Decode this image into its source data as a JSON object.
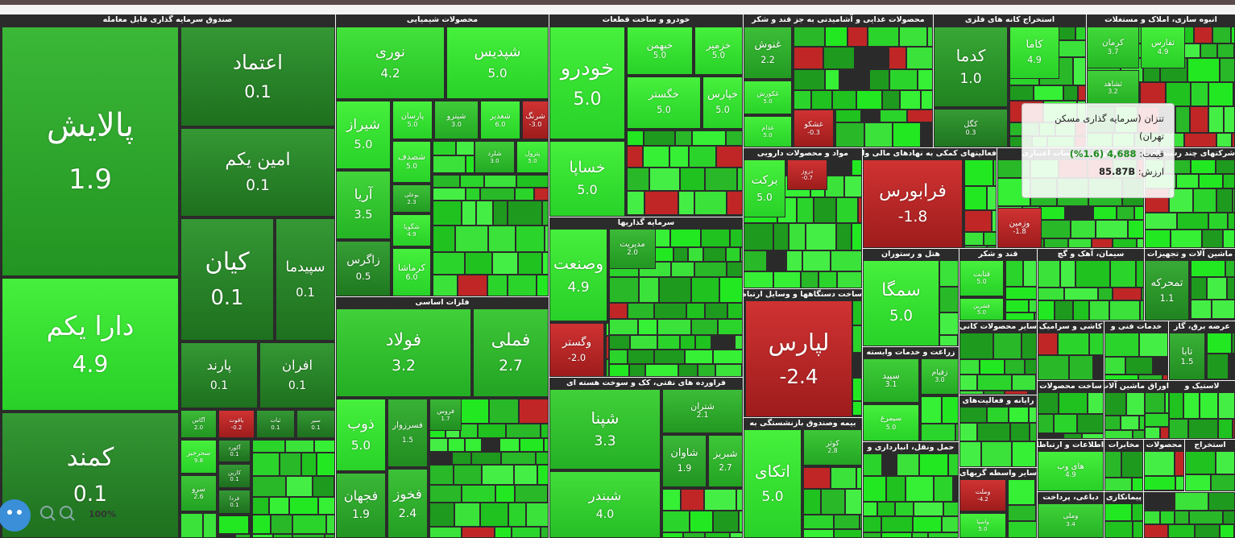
{
  "sectors": [
    {
      "title": "صندوق سرمایه گذاری قابل معامله",
      "tiles": [
        {
          "name": "پالایش",
          "change": "1.9"
        },
        {
          "name": "دارا یکم",
          "change": "4.9"
        },
        {
          "name": "کمند",
          "change": "0.1"
        },
        {
          "name": "اعتماد",
          "change": "0.1"
        },
        {
          "name": "امین یکم",
          "change": "0.1"
        },
        {
          "name": "کیان",
          "change": "0.1"
        },
        {
          "name": "سپیدما",
          "change": "0.1"
        },
        {
          "name": "پارند",
          "change": "0.1"
        },
        {
          "name": "افران",
          "change": "0.1"
        },
        {
          "name": "آگاس",
          "change": "2.0"
        },
        {
          "name": "یاقوت",
          "change": "0.2-"
        },
        {
          "name": "ثبات",
          "change": "0.1"
        },
        {
          "name": "سیر",
          "change": "0.1"
        },
        {
          "name": "سحرخیز",
          "change": "9.8"
        },
        {
          "name": "آکورد",
          "change": "0.1"
        },
        {
          "name": "سرو",
          "change": "2.6"
        },
        {
          "name": "کارین",
          "change": "0.1"
        },
        {
          "name": "فردا",
          "change": "0.1"
        }
      ]
    },
    {
      "title": "محصولات شیمیایی",
      "tiles": [
        {
          "name": "نوری",
          "change": "4.2"
        },
        {
          "name": "شپدیس",
          "change": "5.0"
        },
        {
          "name": "شیراز",
          "change": "5.0"
        },
        {
          "name": "پارسان",
          "change": "5.0"
        },
        {
          "name": "شیترو",
          "change": "3.0"
        },
        {
          "name": "شغدیر",
          "change": "6.0"
        },
        {
          "name": "شرنگ",
          "change": "3.0-"
        },
        {
          "name": "شصدف",
          "change": "5.0"
        },
        {
          "name": "آریا",
          "change": "3.5"
        },
        {
          "name": "بوعلی",
          "change": "2.3"
        },
        {
          "name": "شگویا",
          "change": "4.9"
        },
        {
          "name": "زاگرس",
          "change": "0.5"
        },
        {
          "name": "کرماشا",
          "change": "6.0"
        },
        {
          "name": "شلرد",
          "change": "3.0"
        },
        {
          "name": "پترول",
          "change": "5.0"
        }
      ]
    },
    {
      "title": "فلزات اساسی",
      "tiles": [
        {
          "name": "فولاد",
          "change": "3.2"
        },
        {
          "name": "فملی",
          "change": "2.7"
        },
        {
          "name": "ذوب",
          "change": "5.0"
        },
        {
          "name": "فسرزوار",
          "change": "1.5"
        },
        {
          "name": "فروس",
          "change": "1.7"
        },
        {
          "name": "فجهان",
          "change": "1.9"
        },
        {
          "name": "فخوز",
          "change": "2.4"
        }
      ]
    },
    {
      "title": "خودرو و ساخت قطعات",
      "tiles": [
        {
          "name": "خودرو",
          "change": "5.0"
        },
        {
          "name": "خبهمن",
          "change": "5.0"
        },
        {
          "name": "خزمیر",
          "change": "5.0"
        },
        {
          "name": "خگستر",
          "change": "5.0"
        },
        {
          "name": "خپارس",
          "change": "5.0"
        },
        {
          "name": "خساپا",
          "change": "5.0"
        }
      ]
    },
    {
      "title": "سرمایه گذاریها",
      "tiles": [
        {
          "name": "وصنعت",
          "change": "4.9"
        },
        {
          "name": "مدیریت",
          "change": "2.0"
        },
        {
          "name": "وگستر",
          "change": "2.0-"
        }
      ]
    },
    {
      "title": "فراورده های نفتی، کک و سوخت هسته ای",
      "tiles": [
        {
          "name": "شپنا",
          "change": "3.3"
        },
        {
          "name": "شتران",
          "change": "2.1"
        },
        {
          "name": "شاوان",
          "change": "1.9"
        },
        {
          "name": "شبریز",
          "change": "2.7"
        },
        {
          "name": "شبندر",
          "change": "4.0"
        }
      ]
    },
    {
      "title": "محصولات غذایی و آشامیدنی به جز قند و شکر",
      "tiles": [
        {
          "name": "غنوش",
          "change": "2.2"
        },
        {
          "name": "غکورش",
          "change": "5.0"
        },
        {
          "name": "غدام",
          "change": "5.0"
        },
        {
          "name": "غشکو",
          "change": "0.3-"
        }
      ]
    },
    {
      "title": "استخراج کانه های فلزی",
      "tiles": [
        {
          "name": "کدما",
          "change": "1.0"
        },
        {
          "name": "کگل",
          "change": "0.3"
        },
        {
          "name": "کاما",
          "change": "4.9"
        }
      ]
    },
    {
      "title": "انبوه سازی، املاک و مستغلات",
      "tiles": [
        {
          "name": "کرمان",
          "change": "3.7"
        },
        {
          "name": "ثفارس",
          "change": "4.9"
        },
        {
          "name": "ثشاهد",
          "change": "3.2"
        }
      ]
    },
    {
      "title": "مواد و محصولات دارویی",
      "tiles": [
        {
          "name": "برکت",
          "change": "5.0"
        },
        {
          "name": "دروز",
          "change": "0.7-"
        }
      ]
    },
    {
      "title": "فعالیتهای کمکی به نهادهای مالی واسط",
      "tiles": [
        {
          "name": "فرابورس",
          "change": "1.8-"
        }
      ]
    },
    {
      "title": "بانکها و موسسات اعتباری",
      "tiles": [
        {
          "name": "وزمین",
          "change": "1.8-"
        }
      ]
    },
    {
      "title": "شرکتهای چند رشته ای صنعتی",
      "tiles": []
    },
    {
      "title": "ساخت دستگاهها و وسایل ارتباطی",
      "tiles": [
        {
          "name": "لپارس",
          "change": "2.4-"
        }
      ]
    },
    {
      "title": "بیمه وصندوق بازنشستگی به",
      "tiles": [
        {
          "name": "اتکای",
          "change": "5.0"
        },
        {
          "name": "کوثر",
          "change": "2.8"
        }
      ]
    },
    {
      "title": "هتل و رستوران",
      "tiles": [
        {
          "name": "سمگا",
          "change": "5.0"
        }
      ]
    },
    {
      "title": "قند و شکر",
      "tiles": [
        {
          "name": "قثابت",
          "change": "5.0"
        },
        {
          "name": "قشرین",
          "change": "5.0"
        }
      ]
    },
    {
      "title": "سیمان، آهک و گچ",
      "tiles": []
    },
    {
      "title": "ماشین آلات و تجهیزات",
      "tiles": [
        {
          "name": "تمحرکه",
          "change": "1.1"
        }
      ]
    },
    {
      "title": "زراعت و خدمات وابسته",
      "tiles": [
        {
          "name": "سپید",
          "change": "3.1"
        },
        {
          "name": "سیمرغ",
          "change": "5.0"
        },
        {
          "name": "زقیام",
          "change": "3.0"
        }
      ]
    },
    {
      "title": "حمل ونقل، انبارداری و",
      "tiles": []
    },
    {
      "title": "سایر محصولات کانی",
      "tiles": []
    },
    {
      "title": "کاشی و سرامیک",
      "tiles": []
    },
    {
      "title": "خدمات فنی و",
      "tiles": []
    },
    {
      "title": "عرضه برق، گاز",
      "tiles": [
        {
          "name": "تابا",
          "change": "1.5"
        }
      ]
    },
    {
      "title": "رایانه و فعالیت‌های",
      "tiles": []
    },
    {
      "title": "سایر واسطه گریهای",
      "tiles": [
        {
          "name": "وملت",
          "change": "4.2-"
        },
        {
          "name": "واسپا",
          "change": "5.0"
        }
      ]
    },
    {
      "title": "ساخت محصولات",
      "tiles": []
    },
    {
      "title": "ماشین آلات و",
      "tiles": []
    },
    {
      "title": "اوراق حق",
      "tiles": []
    },
    {
      "title": "لاستیک و",
      "tiles": []
    },
    {
      "title": "اطلاعات و ارتباطات",
      "tiles": [
        {
          "name": "های وب",
          "change": "4.9"
        }
      ]
    },
    {
      "title": "مخابرات",
      "tiles": []
    },
    {
      "title": "محصولات",
      "tiles": []
    },
    {
      "title": "استخراج",
      "tiles": []
    },
    {
      "title": "دباغی، پرداخت",
      "tiles": [
        {
          "name": "وملی",
          "change": "3.4"
        }
      ]
    },
    {
      "title": "پیمانکاری",
      "tiles": []
    }
  ],
  "tooltip": {
    "title": "تنزان (سرمایه گذاری مسکن تهران)",
    "price_label": "قیمت:",
    "price": "4,688 (1.6%)",
    "value_label": "ارزش:",
    "value": "85.87B"
  },
  "zoom": "100%"
}
